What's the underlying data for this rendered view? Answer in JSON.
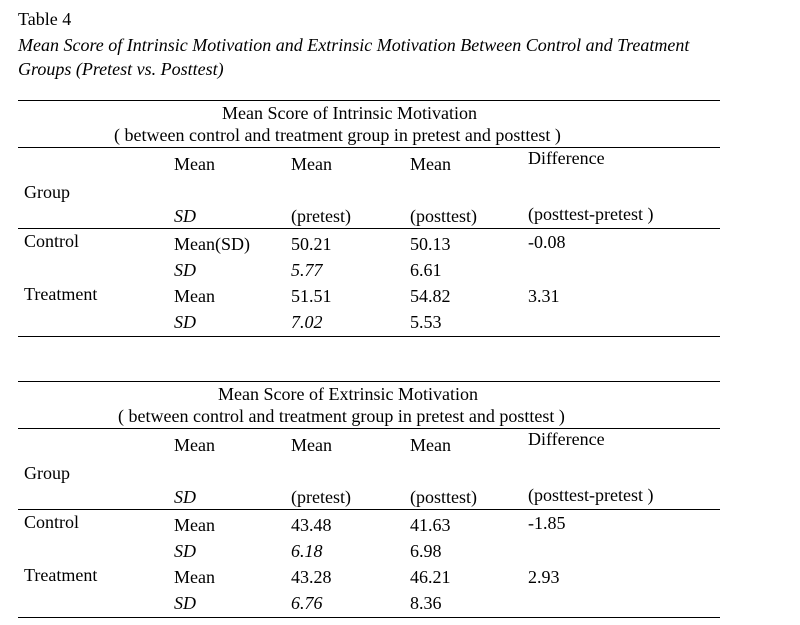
{
  "table_number": "Table 4",
  "caption_line1": "Mean Score of Intrinsic Motivation and Extrinsic Motivation Between Control and Treatment",
  "caption_line2": "Groups (Pretest vs. Posttest)",
  "tables": [
    {
      "title": "Mean Score of Intrinsic Motivation",
      "subtitle": "( between control and treatment group in pretest and posttest )",
      "header": {
        "group": "Group",
        "col1_top": "Mean",
        "col1_bottom": "SD",
        "col2_top": "Mean",
        "col2_bottom": "(pretest)",
        "col3_top": "Mean",
        "col3_bottom": "(posttest)",
        "col4_top": "Difference",
        "col4_bottom": "(posttest-pretest )"
      },
      "rows": [
        {
          "group": "Control",
          "mean_label": "Mean(SD)",
          "pre_mean": "50.21",
          "post_mean": "50.13",
          "diff": "-0.08",
          "sd_label": "SD",
          "pre_sd": "5.77",
          "post_sd": "6.61"
        },
        {
          "group": "Treatment",
          "mean_label": "Mean",
          "pre_mean": "51.51",
          "post_mean": "54.82",
          "diff": "3.31",
          "sd_label": "SD",
          "pre_sd": "7.02",
          "post_sd": "5.53"
        }
      ]
    },
    {
      "title": "Mean Score of Extrinsic Motivation",
      "subtitle": "( between control and treatment group in pretest and posttest )",
      "header": {
        "group": "Group",
        "col1_top": "Mean",
        "col1_bottom": "SD",
        "col2_top": "Mean",
        "col2_bottom": "(pretest)",
        "col3_top": "Mean",
        "col3_bottom": "(posttest)",
        "col4_top": "Difference",
        "col4_bottom": "(posttest-pretest )"
      },
      "rows": [
        {
          "group": "Control",
          "mean_label": "Mean",
          "pre_mean": "43.48",
          "post_mean": "41.63",
          "diff": "-1.85",
          "sd_label": "SD",
          "pre_sd": "6.18",
          "post_sd": "6.98"
        },
        {
          "group": "Treatment",
          "mean_label": "Mean",
          "pre_mean": "43.28",
          "post_mean": "46.21",
          "diff": "2.93",
          "sd_label": "SD",
          "pre_sd": "6.76",
          "post_sd": "8.36"
        }
      ]
    }
  ]
}
